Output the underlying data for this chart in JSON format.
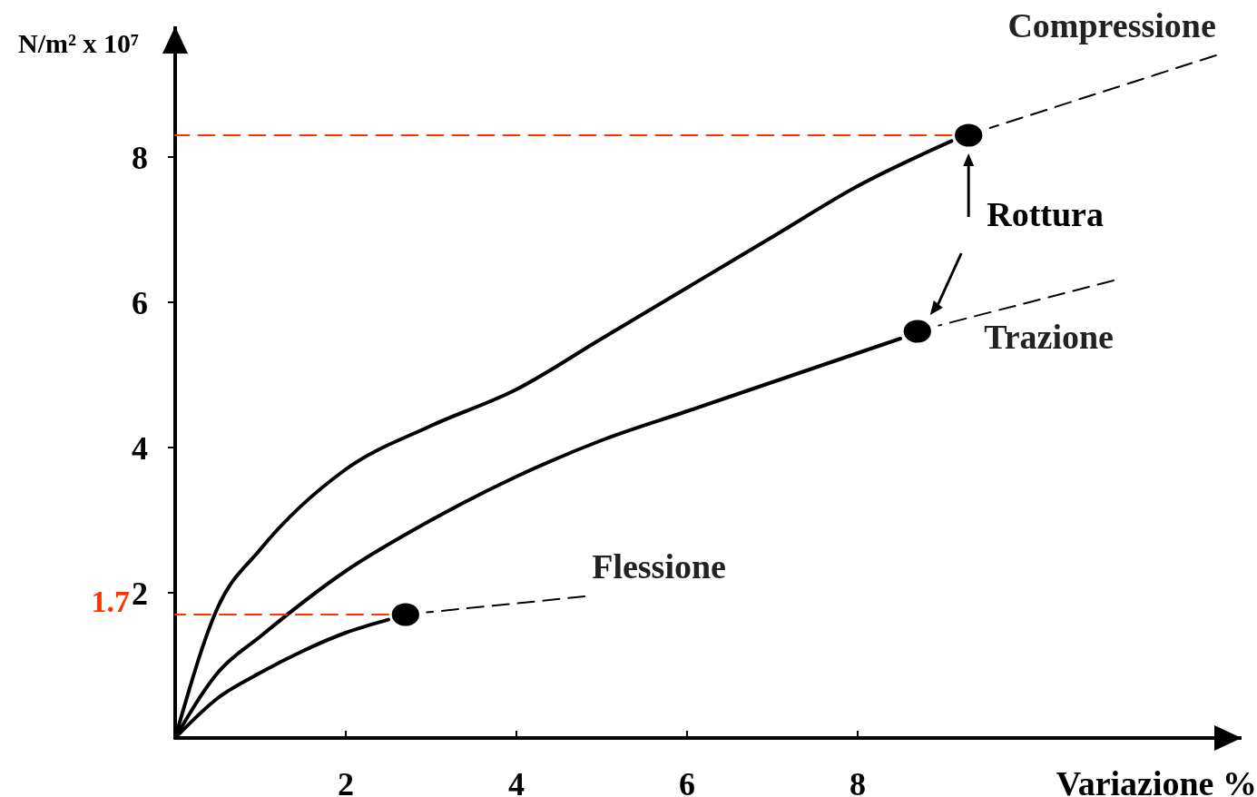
{
  "chart_data": {
    "type": "line",
    "xlabel": "Variazione %",
    "ylabel": "N/m² x 10⁷",
    "xlim": [
      0,
      12.5
    ],
    "ylim": [
      0,
      9.8
    ],
    "xticks": [
      2,
      4,
      6,
      8
    ],
    "yticks": [
      2,
      4,
      6,
      8
    ],
    "grid": false,
    "marker": "none",
    "line_style": "solid",
    "series": [
      {
        "color": "#000000",
        "x": [
          0,
          0.5,
          1,
          2,
          3,
          4,
          5,
          6,
          7,
          8,
          9.1
        ],
        "values": [
          0,
          1.8,
          2.6,
          3.7,
          4.3,
          4.8,
          5.5,
          6.2,
          6.9,
          7.6,
          8.22
        ]
      },
      {
        "color": "#000000",
        "x": [
          0,
          0.5,
          1,
          2,
          3,
          4,
          5,
          6,
          7,
          8,
          8.5
        ],
        "values": [
          0,
          0.9,
          1.4,
          2.3,
          3,
          3.6,
          4.1,
          4.5,
          4.9,
          5.3,
          5.5
        ]
      },
      {
        "color": "#000000",
        "x": [
          0,
          0.5,
          1,
          1.5,
          2,
          2.5
        ],
        "values": [
          0,
          0.55,
          0.9,
          1.2,
          1.45,
          1.63
        ]
      },
      {
        "name": "Compressione",
        "color": "#000000",
        "line_style": "dashed",
        "x": [
          9.55,
          12.2
        ],
        "values": [
          8.4,
          9.4
        ]
      },
      {
        "name": "Trazione",
        "color": "#000000",
        "line_style": "dashed",
        "x": [
          8.95,
          11
        ],
        "values": [
          5.68,
          6.3
        ]
      },
      {
        "name": "Flessione",
        "color": "#000000",
        "line_style": "dashed",
        "x": [
          2.95,
          4.8
        ],
        "values": [
          1.73,
          1.95
        ]
      },
      {
        "color": "#ff3300",
        "line_style": "dashed",
        "x": [
          0,
          9.1
        ],
        "values": [
          8.3,
          8.3
        ]
      },
      {
        "color": "#ff3300",
        "line_style": "dashed",
        "x": [
          0,
          2.5
        ],
        "values": [
          1.7,
          1.7
        ]
      },
      {
        "type": "scatter",
        "color": "#000000",
        "marker": "circle",
        "x": [
          9.3,
          8.7,
          2.7
        ],
        "values": [
          8.3,
          5.6,
          1.7
        ]
      }
    ],
    "annotations": [
      {
        "text": "1.7",
        "x": 0,
        "y": 1.7
      },
      {
        "text": "Rottura",
        "x": 9.3,
        "y": 8.3
      }
    ]
  }
}
